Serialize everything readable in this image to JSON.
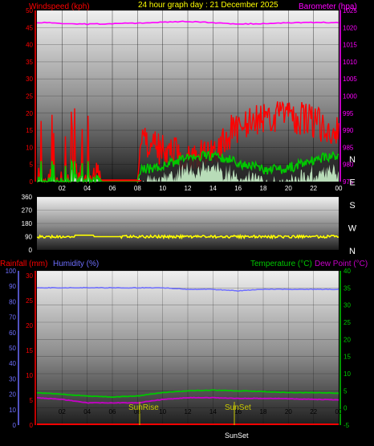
{
  "header": {
    "wind_title": "Windspeed (kph)",
    "center_title": "24 hour graph day : 21 December 2025",
    "baro_title": "Barometer (hpa)",
    "rain_title": "Rainfall (mm)",
    "hum_title": "Humidity (%)",
    "temp_title": "Temperature (°C)",
    "dew_title": "Dew Point (°C)",
    "sunrise": "SunRise",
    "sunset": "SunSet",
    "sunset_bottom": "SunSet"
  },
  "colors": {
    "wind": "#ff0000",
    "gust": "#ff0000",
    "avg": "#00c800",
    "fill": "#c8f0c8",
    "baro": "#ff00ff",
    "dir": "#ffff00",
    "hum": "#6e6eff",
    "temp": "#00c800",
    "dew": "#c800c8",
    "rain": "#ff0000",
    "sun": "#c8c800"
  },
  "chart_data": [
    {
      "type": "line",
      "title": "24 hour graph day : 21 December 2025",
      "x_ticks": [
        "02",
        "04",
        "06",
        "08",
        "10",
        "12",
        "14",
        "16",
        "18",
        "20",
        "22",
        "00"
      ],
      "left_axis": {
        "label": "Windspeed (kph)",
        "range": [
          0,
          50
        ],
        "ticks": [
          "0",
          "5",
          "10",
          "15",
          "20",
          "25",
          "30",
          "35",
          "40",
          "45",
          "50"
        ]
      },
      "right_axis": {
        "label": "Barometer (hpa)",
        "range": [
          975,
          1025
        ],
        "ticks": [
          "975",
          "980",
          "985",
          "990",
          "995",
          "1000",
          "1005",
          "1010",
          "1015",
          "1020",
          "1025"
        ]
      },
      "series": [
        {
          "name": "Windspeed (kph)",
          "approx": "0–22 kph, gusty after 08h"
        },
        {
          "name": "Barometer (hpa)",
          "x_hours": [
            0,
            4,
            8,
            12,
            16,
            20,
            24
          ],
          "values": [
            1021.5,
            1021,
            1021.3,
            1021.8,
            1021,
            1021.4,
            1021.5
          ]
        }
      ]
    },
    {
      "type": "line",
      "left_axis": {
        "range": [
          0,
          360
        ],
        "ticks": [
          "0",
          "90",
          "180",
          "270",
          "360"
        ]
      },
      "right_labels": [
        "N",
        "W",
        "S",
        "E",
        "N"
      ],
      "series": [
        {
          "name": "Wind direction",
          "approx_value": 90
        }
      ]
    },
    {
      "type": "line",
      "x_ticks": [
        "02",
        "04",
        "06",
        "08",
        "10",
        "12",
        "14",
        "16",
        "18",
        "20",
        "22",
        "00"
      ],
      "rain_axis": {
        "ticks": [
          "0",
          "5",
          "10",
          "15",
          "20",
          "25",
          "30"
        ]
      },
      "hum_axis": {
        "ticks": [
          "0",
          "10",
          "20",
          "30",
          "40",
          "50",
          "60",
          "70",
          "80",
          "90",
          "100"
        ]
      },
      "temp_axis": {
        "ticks": [
          "-5",
          "0",
          "5",
          "10",
          "15",
          "20",
          "25",
          "30",
          "35",
          "40"
        ]
      },
      "series": [
        {
          "name": "Humidity (%)",
          "x_hours": [
            0,
            4,
            8,
            10,
            12,
            14,
            16,
            18,
            20,
            22,
            24
          ],
          "values": [
            89,
            89,
            89,
            89,
            88,
            88,
            87,
            88,
            88,
            88,
            88
          ]
        },
        {
          "name": "Temperature (°C)",
          "x_hours": [
            0,
            2,
            4,
            6,
            8,
            10,
            12,
            14,
            16,
            18,
            20,
            22,
            24
          ],
          "values": [
            4.5,
            4,
            3.5,
            3.2,
            3.5,
            4.5,
            5,
            5.2,
            5,
            4.8,
            4.5,
            4.5,
            4.3
          ]
        },
        {
          "name": "Dew Point (°C)",
          "x_hours": [
            0,
            2,
            4,
            6,
            8,
            10,
            12,
            14,
            16,
            18,
            20,
            22,
            24
          ],
          "values": [
            3,
            2.5,
            1.5,
            1.5,
            1.5,
            2.5,
            3,
            3,
            2.8,
            2.8,
            2.7,
            2.5,
            2.4
          ]
        },
        {
          "name": "Rainfall (mm)",
          "values": [
            0
          ]
        }
      ],
      "annotations": [
        {
          "text": "SunRise",
          "x_hour": 7.5
        },
        {
          "text": "SunSet",
          "x_hour": 15.2
        }
      ]
    }
  ]
}
